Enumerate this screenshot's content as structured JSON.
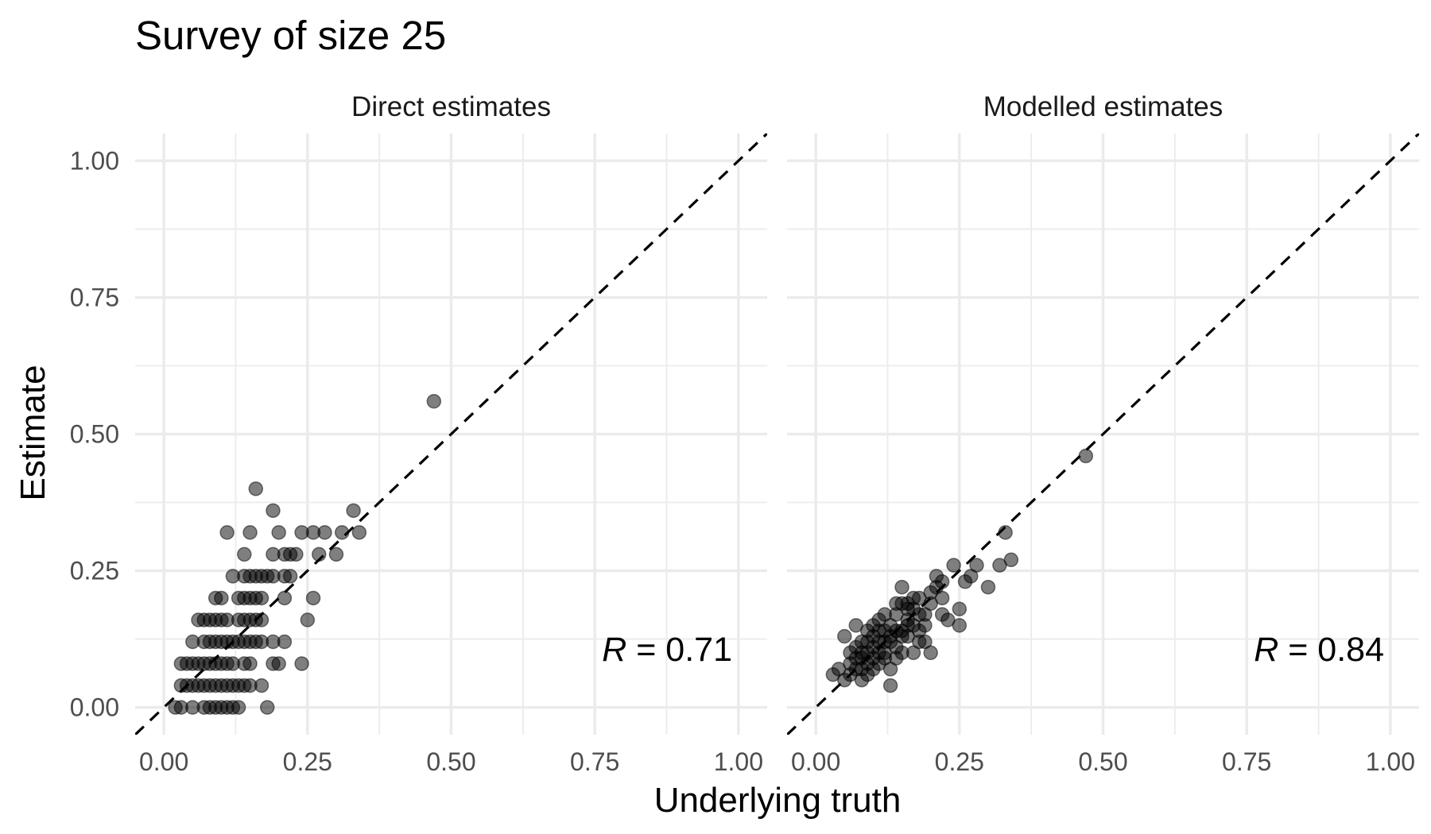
{
  "chart_data": {
    "type": "scatter",
    "title": "Survey of size 25",
    "xlabel": "Underlying truth",
    "ylabel": "Estimate",
    "xlim": [
      -0.05,
      1.05
    ],
    "ylim": [
      -0.05,
      1.05
    ],
    "x_ticks": [
      "0.00",
      "0.25",
      "0.50",
      "0.75",
      "1.00"
    ],
    "y_ticks": [
      "0.00",
      "0.25",
      "0.50",
      "0.75",
      "1.00"
    ],
    "grid": true,
    "reference_line": "y = x (dashed)",
    "panels": [
      {
        "name": "Direct estimates",
        "annotation": {
          "symbol": "R",
          "text": " = 0.71"
        },
        "points": [
          [
            0.02,
            0.0
          ],
          [
            0.03,
            0.0
          ],
          [
            0.05,
            0.0
          ],
          [
            0.07,
            0.0
          ],
          [
            0.08,
            0.0
          ],
          [
            0.09,
            0.0
          ],
          [
            0.1,
            0.0
          ],
          [
            0.11,
            0.0
          ],
          [
            0.12,
            0.0
          ],
          [
            0.13,
            0.0
          ],
          [
            0.18,
            0.0
          ],
          [
            0.03,
            0.04
          ],
          [
            0.04,
            0.04
          ],
          [
            0.05,
            0.04
          ],
          [
            0.06,
            0.04
          ],
          [
            0.07,
            0.04
          ],
          [
            0.08,
            0.04
          ],
          [
            0.09,
            0.04
          ],
          [
            0.1,
            0.04
          ],
          [
            0.11,
            0.04
          ],
          [
            0.12,
            0.04
          ],
          [
            0.13,
            0.04
          ],
          [
            0.14,
            0.04
          ],
          [
            0.15,
            0.04
          ],
          [
            0.17,
            0.04
          ],
          [
            0.03,
            0.08
          ],
          [
            0.04,
            0.08
          ],
          [
            0.05,
            0.08
          ],
          [
            0.06,
            0.08
          ],
          [
            0.07,
            0.08
          ],
          [
            0.08,
            0.08
          ],
          [
            0.09,
            0.08
          ],
          [
            0.1,
            0.08
          ],
          [
            0.11,
            0.08
          ],
          [
            0.12,
            0.08
          ],
          [
            0.14,
            0.08
          ],
          [
            0.15,
            0.08
          ],
          [
            0.19,
            0.08
          ],
          [
            0.2,
            0.08
          ],
          [
            0.24,
            0.08
          ],
          [
            0.05,
            0.12
          ],
          [
            0.07,
            0.12
          ],
          [
            0.08,
            0.12
          ],
          [
            0.09,
            0.12
          ],
          [
            0.1,
            0.12
          ],
          [
            0.11,
            0.12
          ],
          [
            0.12,
            0.12
          ],
          [
            0.13,
            0.12
          ],
          [
            0.14,
            0.12
          ],
          [
            0.15,
            0.12
          ],
          [
            0.16,
            0.12
          ],
          [
            0.17,
            0.12
          ],
          [
            0.19,
            0.12
          ],
          [
            0.21,
            0.12
          ],
          [
            0.06,
            0.16
          ],
          [
            0.07,
            0.16
          ],
          [
            0.08,
            0.16
          ],
          [
            0.09,
            0.16
          ],
          [
            0.1,
            0.16
          ],
          [
            0.11,
            0.16
          ],
          [
            0.13,
            0.16
          ],
          [
            0.14,
            0.16
          ],
          [
            0.15,
            0.16
          ],
          [
            0.16,
            0.16
          ],
          [
            0.17,
            0.16
          ],
          [
            0.25,
            0.16
          ],
          [
            0.09,
            0.2
          ],
          [
            0.1,
            0.2
          ],
          [
            0.13,
            0.2
          ],
          [
            0.14,
            0.2
          ],
          [
            0.15,
            0.2
          ],
          [
            0.16,
            0.2
          ],
          [
            0.17,
            0.2
          ],
          [
            0.21,
            0.2
          ],
          [
            0.26,
            0.2
          ],
          [
            0.12,
            0.24
          ],
          [
            0.14,
            0.24
          ],
          [
            0.15,
            0.24
          ],
          [
            0.16,
            0.24
          ],
          [
            0.17,
            0.24
          ],
          [
            0.18,
            0.24
          ],
          [
            0.19,
            0.24
          ],
          [
            0.21,
            0.24
          ],
          [
            0.22,
            0.24
          ],
          [
            0.14,
            0.28
          ],
          [
            0.19,
            0.28
          ],
          [
            0.21,
            0.28
          ],
          [
            0.22,
            0.28
          ],
          [
            0.23,
            0.28
          ],
          [
            0.27,
            0.28
          ],
          [
            0.3,
            0.28
          ],
          [
            0.11,
            0.32
          ],
          [
            0.15,
            0.32
          ],
          [
            0.2,
            0.32
          ],
          [
            0.24,
            0.32
          ],
          [
            0.26,
            0.32
          ],
          [
            0.28,
            0.32
          ],
          [
            0.31,
            0.32
          ],
          [
            0.34,
            0.32
          ],
          [
            0.19,
            0.36
          ],
          [
            0.33,
            0.36
          ],
          [
            0.16,
            0.4
          ],
          [
            0.47,
            0.56
          ]
        ]
      },
      {
        "name": "Modelled estimates",
        "annotation": {
          "symbol": "R",
          "text": " = 0.84"
        },
        "points": [
          [
            0.03,
            0.06
          ],
          [
            0.04,
            0.07
          ],
          [
            0.05,
            0.05
          ],
          [
            0.06,
            0.08
          ],
          [
            0.06,
            0.06
          ],
          [
            0.07,
            0.09
          ],
          [
            0.07,
            0.11
          ],
          [
            0.08,
            0.07
          ],
          [
            0.08,
            0.1
          ],
          [
            0.09,
            0.08
          ],
          [
            0.09,
            0.12
          ],
          [
            0.1,
            0.09
          ],
          [
            0.1,
            0.11
          ],
          [
            0.11,
            0.1
          ],
          [
            0.11,
            0.14
          ],
          [
            0.12,
            0.12
          ],
          [
            0.12,
            0.09
          ],
          [
            0.13,
            0.13
          ],
          [
            0.13,
            0.15
          ],
          [
            0.14,
            0.11
          ],
          [
            0.14,
            0.17
          ],
          [
            0.15,
            0.14
          ],
          [
            0.15,
            0.19
          ],
          [
            0.16,
            0.16
          ],
          [
            0.16,
            0.13
          ],
          [
            0.17,
            0.18
          ],
          [
            0.17,
            0.15
          ],
          [
            0.18,
            0.2
          ],
          [
            0.18,
            0.12
          ],
          [
            0.19,
            0.17
          ],
          [
            0.2,
            0.21
          ],
          [
            0.2,
            0.19
          ],
          [
            0.21,
            0.24
          ],
          [
            0.21,
            0.22
          ],
          [
            0.22,
            0.23
          ],
          [
            0.22,
            0.2
          ],
          [
            0.24,
            0.26
          ],
          [
            0.25,
            0.18
          ],
          [
            0.25,
            0.15
          ],
          [
            0.26,
            0.23
          ],
          [
            0.27,
            0.24
          ],
          [
            0.28,
            0.26
          ],
          [
            0.3,
            0.22
          ],
          [
            0.32,
            0.26
          ],
          [
            0.33,
            0.32
          ],
          [
            0.34,
            0.27
          ],
          [
            0.47,
            0.46
          ],
          [
            0.05,
            0.13
          ],
          [
            0.07,
            0.15
          ],
          [
            0.08,
            0.05
          ],
          [
            0.09,
            0.06
          ],
          [
            0.1,
            0.15
          ],
          [
            0.11,
            0.08
          ],
          [
            0.12,
            0.17
          ],
          [
            0.13,
            0.07
          ],
          [
            0.14,
            0.09
          ],
          [
            0.15,
            0.22
          ],
          [
            0.15,
            0.1
          ],
          [
            0.16,
            0.19
          ],
          [
            0.17,
            0.1
          ],
          [
            0.18,
            0.14
          ],
          [
            0.19,
            0.12
          ],
          [
            0.2,
            0.1
          ],
          [
            0.13,
            0.04
          ],
          [
            0.09,
            0.14
          ],
          [
            0.1,
            0.13
          ],
          [
            0.11,
            0.12
          ],
          [
            0.12,
            0.14
          ],
          [
            0.08,
            0.09
          ],
          [
            0.07,
            0.07
          ],
          [
            0.06,
            0.1
          ],
          [
            0.14,
            0.14
          ],
          [
            0.16,
            0.18
          ],
          [
            0.18,
            0.17
          ],
          [
            0.12,
            0.1
          ],
          [
            0.1,
            0.07
          ],
          [
            0.13,
            0.12
          ],
          [
            0.17,
            0.2
          ],
          [
            0.19,
            0.15
          ],
          [
            0.23,
            0.16
          ],
          [
            0.11,
            0.16
          ],
          [
            0.09,
            0.1
          ],
          [
            0.14,
            0.19
          ],
          [
            0.15,
            0.13
          ],
          [
            0.16,
            0.15
          ],
          [
            0.22,
            0.17
          ],
          [
            0.08,
            0.12
          ]
        ]
      }
    ]
  }
}
